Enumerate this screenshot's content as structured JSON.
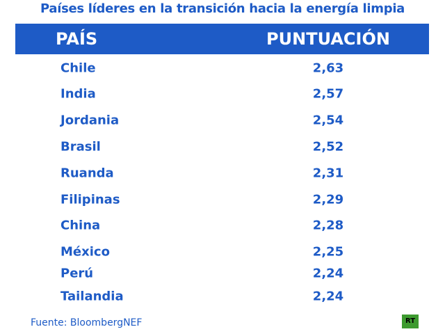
{
  "title": "Países líderes en la transición hacia la energía limpia",
  "table": {
    "header": [
      "PAÍS",
      "PUNTUACIÓN"
    ],
    "rows": [
      [
        "Chile",
        "2,63"
      ],
      [
        "India",
        "2,57"
      ],
      [
        "Jordania",
        "2,54"
      ],
      [
        "Brasil",
        "2,52"
      ],
      [
        "Ruanda",
        "2,31"
      ],
      [
        "Filipinas",
        "2,29"
      ],
      [
        "China",
        "2,28"
      ],
      [
        "México",
        "2,25"
      ],
      [
        "Perú",
        "2,24"
      ],
      [
        "Tailandia",
        "2,24"
      ]
    ]
  },
  "source": "Fuente: BloombergNEF",
  "logo": "RT"
}
